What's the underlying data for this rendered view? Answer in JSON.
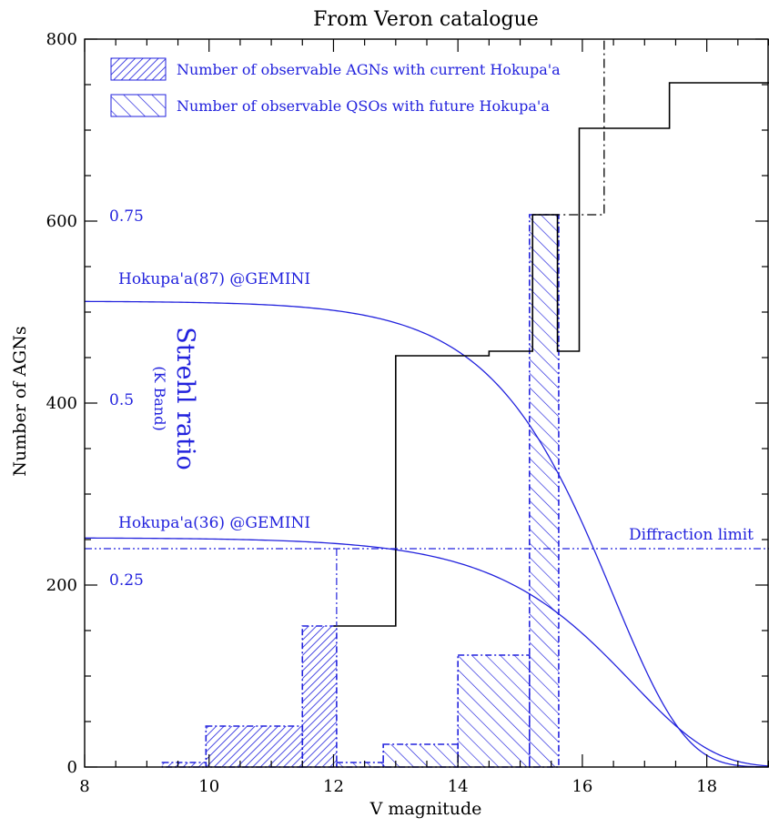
{
  "chart_data": {
    "type": "bar",
    "title": "From Veron catalogue",
    "xlabel": "V magnitude",
    "ylabel": "Number of AGNs",
    "xlim": [
      8,
      19
    ],
    "ylim": [
      0,
      800
    ],
    "x_ticks": [
      "8",
      "10",
      "12",
      "14",
      "16",
      "18"
    ],
    "y_ticks": [
      "0",
      "200",
      "400",
      "600",
      "800"
    ],
    "right_axis": {
      "label": "Strehl ratio",
      "sublabel": "(K Band)",
      "ticks": [
        {
          "label": "0.75",
          "value": 0.75
        },
        {
          "label": "0.5",
          "value": 0.5
        },
        {
          "label": "0.25",
          "value": 0.25
        }
      ]
    },
    "legend": [
      {
        "label": "Number of observable AGNs with current Hokupa'a",
        "pattern": "dense-hatch"
      },
      {
        "label": "Number of observable QSOs with future Hokupa'a",
        "pattern": "sparse-hatch"
      }
    ],
    "series": [
      {
        "name": "",
        "kind": "total-step",
        "bins": [
          {
            "x0": 13.0,
            "x1": 14.5,
            "y": 452
          },
          {
            "x0": 14.5,
            "x1": 15.2,
            "y": 457
          },
          {
            "x0": 15.2,
            "x1": 15.6,
            "y": 607
          },
          {
            "x0": 15.6,
            "x1": 15.95,
            "y": 457
          },
          {
            "x0": 15.95,
            "x1": 17.4,
            "y": 702
          },
          {
            "x0": 17.4,
            "x1": 19.0,
            "y": 752
          }
        ],
        "start": {
          "x": 12.0,
          "y": 155
        },
        "dashed_extension": {
          "x0": 15.2,
          "x1": 16.35,
          "y": 607,
          "top": 800
        }
      },
      {
        "name": "Number of observable AGNs with current Hokupa'a",
        "kind": "hatched-bins",
        "bins": [
          {
            "x0": 9.25,
            "x1": 9.95,
            "y": 5
          },
          {
            "x0": 9.95,
            "x1": 11.5,
            "y": 45
          },
          {
            "x0": 11.5,
            "x1": 12.05,
            "y": 155
          }
        ]
      },
      {
        "name": "Number of observable QSOs with future Hokupa'a",
        "kind": "hatched-bins",
        "bins": [
          {
            "x0": 12.05,
            "x1": 12.8,
            "y": 5
          },
          {
            "x0": 12.8,
            "x1": 14.0,
            "y": 25
          },
          {
            "x0": 14.0,
            "x1": 15.15,
            "y": 123
          },
          {
            "x0": 15.15,
            "x1": 15.62,
            "y": 607
          }
        ]
      }
    ],
    "curves": [
      {
        "name": "Hokupa'a(87) @GEMINI",
        "strehl_max": 0.64,
        "mag_half": 15.0,
        "width": 1.15
      },
      {
        "name": "Hokupa'a(36) @GEMINI",
        "strehl_max": 0.315,
        "mag_half": 15.3,
        "width": 1.3
      }
    ],
    "reference_line": {
      "label": "Diffraction limit",
      "y": 240,
      "drop_x": 12.05
    },
    "colors": {
      "axes": "#000000",
      "blue": "#2222dd"
    }
  }
}
